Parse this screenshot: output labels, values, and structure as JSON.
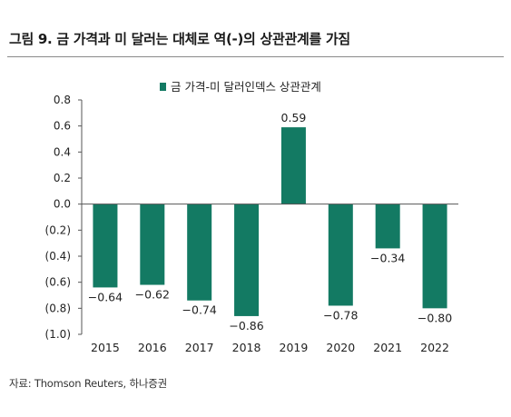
{
  "figure": {
    "title": "그림 9. 금 가격과 미 달러는 대체로 역(-)의 상관관계를 가짐",
    "source": "자료: Thomson Reuters, 하나증권"
  },
  "chart_data": {
    "type": "bar",
    "title": "",
    "xlabel": "",
    "ylabel": "",
    "categories": [
      "2015",
      "2016",
      "2017",
      "2018",
      "2019",
      "2020",
      "2021",
      "2022"
    ],
    "series": [
      {
        "name": "금 가격-미 달러인덱스 상관관계",
        "values": [
          -0.64,
          -0.62,
          -0.74,
          -0.86,
          0.59,
          -0.78,
          -0.34,
          -0.8
        ],
        "value_labels": [
          "-0.64",
          "-0.62",
          "-0.74",
          "-0.86",
          "0.59",
          "-0.78",
          "-0.34",
          "-0.80"
        ]
      }
    ],
    "ylim": [
      -1.0,
      0.8
    ],
    "yticks": [
      0.8,
      0.6,
      0.4,
      0.2,
      0.0,
      -0.2,
      -0.4,
      -0.6,
      -0.8,
      -1.0
    ],
    "ytick_labels": [
      "0.8",
      "0.6",
      "0.4",
      "0.2",
      "0.0",
      "(0.2)",
      "(0.4)",
      "(0.6)",
      "(0.8)",
      "(1.0)"
    ],
    "grid": false,
    "legend": "top-center",
    "bar_color": "#137a63"
  }
}
